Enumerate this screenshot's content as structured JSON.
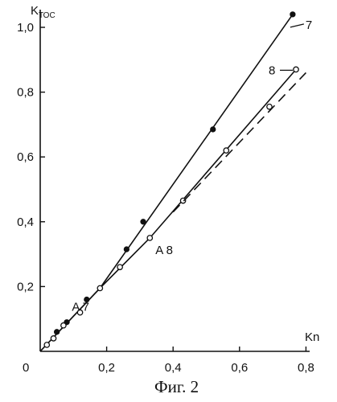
{
  "chart_data": {
    "type": "line",
    "title": "",
    "caption": "Фиг. 2",
    "ylabel_main": "K",
    "ylabel_sub": "ТОС",
    "xlabel": "Kn",
    "xlim": [
      0,
      0.8
    ],
    "ylim": [
      0,
      1.0
    ],
    "x_ticks": [
      "0,2",
      "0,4",
      "0,6",
      "0,8"
    ],
    "y_ticks": [
      "0,2",
      "0,4",
      "0,6",
      "0,8",
      "1,0"
    ],
    "origin_label": "0",
    "grid": false,
    "series": [
      {
        "name": "7",
        "marker": "filled",
        "line_points": [
          [
            0,
            0
          ],
          [
            0.18,
            0.195
          ],
          [
            0.76,
            1.04
          ]
        ],
        "points": [
          [
            0.05,
            0.06
          ],
          [
            0.08,
            0.09
          ],
          [
            0.14,
            0.16
          ],
          [
            0.26,
            0.315
          ],
          [
            0.31,
            0.4
          ],
          [
            0.52,
            0.685
          ],
          [
            0.76,
            1.04
          ]
        ]
      },
      {
        "name": "8",
        "marker": "open",
        "line_points": [
          [
            0,
            0
          ],
          [
            0.18,
            0.195
          ],
          [
            0.33,
            0.35
          ],
          [
            0.77,
            0.87
          ]
        ],
        "points": [
          [
            0.02,
            0.02
          ],
          [
            0.04,
            0.04
          ],
          [
            0.07,
            0.08
          ],
          [
            0.12,
            0.12
          ],
          [
            0.18,
            0.195
          ],
          [
            0.24,
            0.26
          ],
          [
            0.33,
            0.35
          ],
          [
            0.43,
            0.465
          ],
          [
            0.56,
            0.62
          ],
          [
            0.69,
            0.755
          ],
          [
            0.77,
            0.87
          ]
        ]
      },
      {
        "name": "",
        "style": "dashed",
        "line_points": [
          [
            0.4,
            0.43
          ],
          [
            0.8,
            0.86
          ]
        ]
      }
    ],
    "annotations": [
      {
        "text": "A 7",
        "x": 0.18,
        "y": 0.195
      },
      {
        "text": "A 8",
        "x": 0.33,
        "y": 0.35
      }
    ]
  }
}
